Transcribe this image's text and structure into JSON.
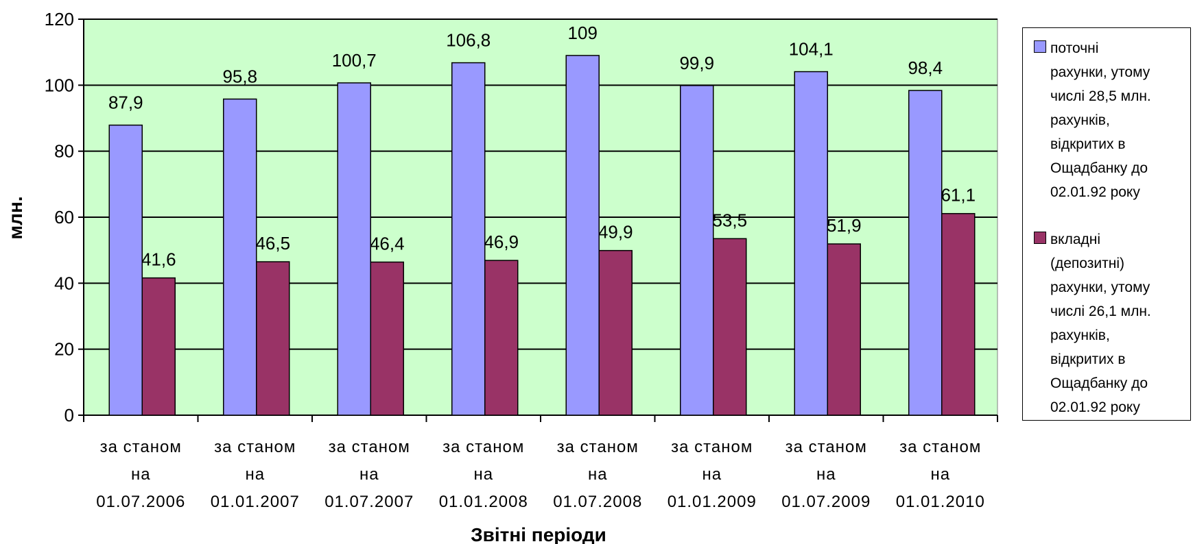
{
  "chart_data": {
    "type": "bar",
    "categories": [
      [
        "за станом",
        "на",
        "01.07.2006"
      ],
      [
        "за станом",
        "на",
        "01.01.2007"
      ],
      [
        "за станом",
        "на",
        "01.07.2007"
      ],
      [
        "за станом",
        "на",
        "01.01.2008"
      ],
      [
        "за станом",
        "на",
        "01.07.2008"
      ],
      [
        "за станом",
        "на",
        "01.01.2009"
      ],
      [
        "за станом",
        "на",
        "01.07.2009"
      ],
      [
        "за станом",
        "на",
        "01.01.2010"
      ]
    ],
    "series": [
      {
        "name": "поточні рахунки, утому числі 28,5 млн. рахунків, відкритих в Ощадбанку до 02.01.92 року",
        "color": "#9999ff",
        "values": [
          87.9,
          95.8,
          100.7,
          106.8,
          109,
          99.9,
          104.1,
          98.4
        ],
        "labels": [
          "87,9",
          "95,8",
          "100,7",
          "106,8",
          "109",
          "99,9",
          "104,1",
          "98,4"
        ]
      },
      {
        "name": "вкладні (депозитні) рахунки, утому числі 26,1 млн. рахунків, відкритих в Ощадбанку до 02.01.92 року",
        "color": "#993366",
        "values": [
          41.6,
          46.5,
          46.4,
          46.9,
          49.9,
          53.5,
          51.9,
          61.1
        ],
        "labels": [
          "41,6",
          "46,5",
          "46,4",
          "46,9",
          "49,9",
          "53,5",
          "51,9",
          "61,1"
        ]
      }
    ],
    "xlabel": "Звітні періоди",
    "ylabel": "млн.",
    "ylim": [
      0,
      120
    ],
    "yticks": [
      "0",
      "20",
      "40",
      "60",
      "80",
      "100",
      "120"
    ],
    "ytick_values": [
      0,
      20,
      40,
      60,
      80,
      100,
      120
    ],
    "plot_background": "#ccffcc",
    "grid": true,
    "legend_position": "right"
  },
  "legend": {
    "items": [
      {
        "text_lines": [
          "поточні",
          "рахунки, утому",
          "числі 28,5 млн.",
          "рахунків,",
          "відкритих в",
          "Ощадбанку до",
          "02.01.92 року"
        ]
      },
      {
        "text_lines": [
          "вкладні",
          "(депозитні)",
          "рахунки, утому",
          "числі 26,1 млн.",
          "рахунків,",
          "відкритих в",
          "Ощадбанку до",
          "02.01.92 року"
        ]
      }
    ]
  }
}
